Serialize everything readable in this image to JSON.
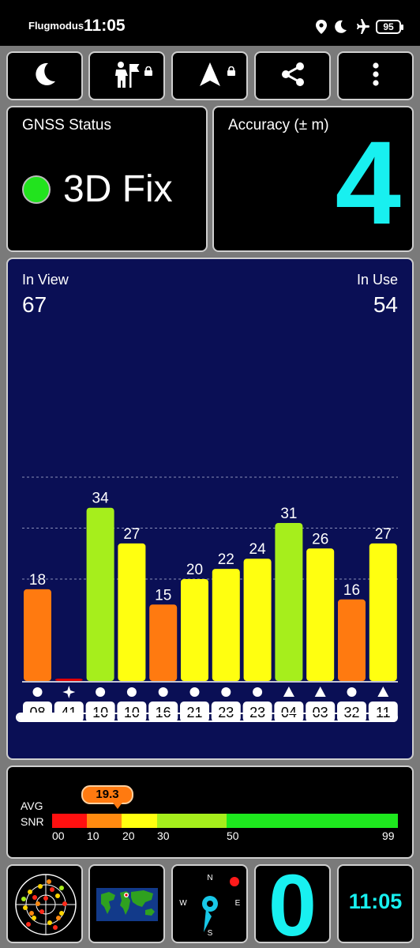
{
  "status_bar": {
    "mode": "Flugmodus",
    "time": "11:05",
    "battery": "95",
    "icons": [
      "location-icon",
      "moon-icon",
      "airplane-icon",
      "battery-icon"
    ]
  },
  "toolbar": {
    "buttons": [
      "night-mode",
      "map-lock",
      "navigation-lock",
      "share",
      "more-menu"
    ]
  },
  "gnss": {
    "title": "GNSS Status",
    "fix": "3D Fix",
    "fix_color": "#22e31e"
  },
  "accuracy": {
    "title": "Accuracy (± m)",
    "value": "4"
  },
  "satellites": {
    "in_view_label": "In View",
    "in_view": "67",
    "in_use_label": "In Use",
    "in_use": "54"
  },
  "chart_data": {
    "type": "bar",
    "categories": [
      "08",
      "41",
      "10",
      "10",
      "16",
      "21",
      "23",
      "23",
      "04",
      "03",
      "32",
      "11"
    ],
    "markers": [
      "circle",
      "star",
      "circle",
      "circle",
      "circle",
      "circle",
      "circle",
      "circle",
      "triangle",
      "triangle",
      "circle",
      "triangle"
    ],
    "values": [
      18,
      0,
      34,
      27,
      15,
      20,
      22,
      24,
      31,
      26,
      16,
      27
    ],
    "labels": [
      "18",
      "",
      "34",
      "27",
      "15",
      "20",
      "22",
      "24",
      "31",
      "26",
      "16",
      "27"
    ],
    "colors": [
      "#ff7a10",
      "#e00000",
      "#a6ee1c",
      "#ffff10",
      "#ff7a10",
      "#ffff10",
      "#ffff10",
      "#ffff10",
      "#a6ee1c",
      "#ffff10",
      "#ff7a10",
      "#ffff10"
    ],
    "ylim": [
      0,
      50
    ],
    "grid": [
      20,
      30,
      40
    ],
    "scroll_position": 0.17
  },
  "snr": {
    "avg_label_1": "AVG",
    "avg_label_2": "SNR",
    "avg_value": "19.3",
    "scale": [
      "00",
      "10",
      "20",
      "30",
      "50",
      "99"
    ],
    "segments": [
      {
        "from": 0,
        "to": 10,
        "color": "#ff1010"
      },
      {
        "from": 10,
        "to": 20,
        "color": "#ff8a10"
      },
      {
        "from": 20,
        "to": 30,
        "color": "#ffff10"
      },
      {
        "from": 30,
        "to": 50,
        "color": "#a6ee1c"
      },
      {
        "from": 50,
        "to": 99,
        "color": "#1ee81e"
      }
    ]
  },
  "bottom": {
    "count": "0",
    "clock": "11:05",
    "compass": {
      "n": "N",
      "e": "E",
      "s": "S",
      "w": "W"
    }
  }
}
